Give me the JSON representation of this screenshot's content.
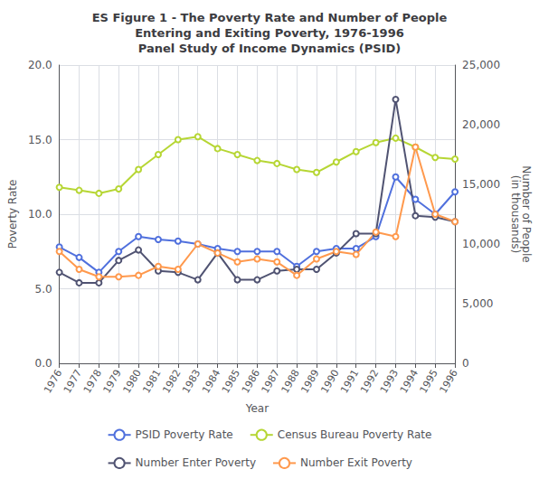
{
  "chart_data": {
    "type": "line",
    "title": "ES Figure 1 - The Poverty Rate and Number of People\nEntering and Exiting Poverty, 1976-1996\nPanel Study of Income Dynamics (PSID)",
    "xlabel": "Year",
    "ylabel": "Poverty Rate",
    "y2label": "Number of People\n(in thousands)",
    "categories": [
      "1976",
      "1977",
      "1978",
      "1979",
      "1980",
      "1981",
      "1982",
      "1983",
      "1984",
      "1985",
      "1986",
      "1987",
      "1988",
      "1989",
      "1990",
      "1991",
      "1992",
      "1993",
      "1994",
      "1995",
      "1996"
    ],
    "series": [
      {
        "name": "PSID Poverty Rate",
        "values": [
          7.8,
          7.1,
          6.1,
          7.5,
          8.5,
          8.3,
          8.2,
          8.0,
          7.7,
          7.5,
          7.5,
          7.5,
          6.5,
          7.5,
          7.7,
          7.7,
          8.5,
          12.5,
          11.0,
          10.0,
          11.5
        ]
      },
      {
        "name": "Census Bureau Poverty Rate",
        "values": [
          11.8,
          11.6,
          11.4,
          11.7,
          13.0,
          14.0,
          15.0,
          15.2,
          14.4,
          14.0,
          13.6,
          13.4,
          13.0,
          12.8,
          13.5,
          14.2,
          14.8,
          15.1,
          14.5,
          13.8,
          13.7
        ]
      },
      {
        "name": "Number Enter Poverty",
        "values": [
          6.1,
          5.4,
          5.4,
          6.9,
          7.6,
          6.2,
          6.1,
          5.6,
          7.4,
          5.6,
          5.6,
          6.2,
          6.3,
          6.3,
          7.4,
          8.7,
          8.7,
          17.7,
          9.9,
          9.8,
          9.5
        ]
      },
      {
        "name": "Number Exit Poverty",
        "values": [
          7.5,
          6.3,
          5.8,
          5.8,
          5.9,
          6.5,
          6.3,
          8.0,
          7.4,
          6.8,
          7.0,
          6.8,
          5.9,
          7.0,
          7.5,
          7.3,
          8.8,
          8.5,
          14.5,
          10.0,
          9.5
        ]
      }
    ],
    "ylim": [
      0,
      20
    ],
    "yticks": [
      {
        "value": 0,
        "label": "0.0"
      },
      {
        "value": 5,
        "label": "5.0"
      },
      {
        "value": 10,
        "label": "10.0"
      },
      {
        "value": 15,
        "label": "15.0"
      },
      {
        "value": 20,
        "label": "20.0"
      }
    ],
    "y2lim": [
      0,
      25000
    ],
    "y2ticks": [
      0,
      {
        "value": 5000,
        "label": "5,000"
      },
      {
        "value": 10000,
        "label": "10,000"
      },
      {
        "value": 15000,
        "label": "15,000"
      },
      {
        "value": 20000,
        "label": "20,000"
      },
      {
        "value": 25000,
        "label": "25,000"
      }
    ],
    "grid": true,
    "legend": "bottom"
  }
}
